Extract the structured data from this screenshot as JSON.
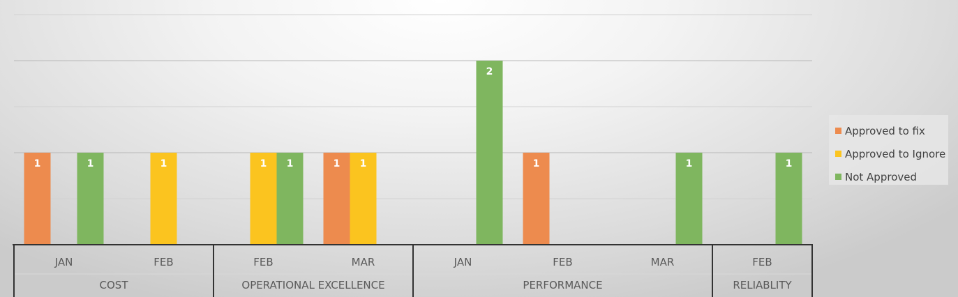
{
  "chart_data": {
    "type": "bar",
    "groups": [
      {
        "label": "COST",
        "months": [
          "JAN",
          "FEB"
        ]
      },
      {
        "label": "OPERATIONAL EXCELLENCE",
        "months": [
          "FEB",
          "MAR"
        ]
      },
      {
        "label": "PERFORMANCE",
        "months": [
          "JAN",
          "FEB",
          "MAR"
        ]
      },
      {
        "label": "RELIABLITY",
        "months": [
          "FEB"
        ]
      }
    ],
    "series": [
      {
        "name": "Approved to fix",
        "color": "#ED8B4E",
        "values": [
          1,
          null,
          null,
          1,
          null,
          1,
          null,
          null
        ]
      },
      {
        "name": "Approved to Ignore",
        "color": "#FBC41F",
        "values": [
          null,
          1,
          1,
          1,
          null,
          null,
          null,
          null
        ]
      },
      {
        "name": "Not Approved",
        "color": "#7FB65F",
        "values": [
          1,
          null,
          1,
          null,
          2,
          null,
          1,
          1
        ]
      }
    ],
    "ylim": [
      0,
      2.5
    ],
    "grid": true,
    "data_labels": true,
    "legend_position": "right"
  }
}
